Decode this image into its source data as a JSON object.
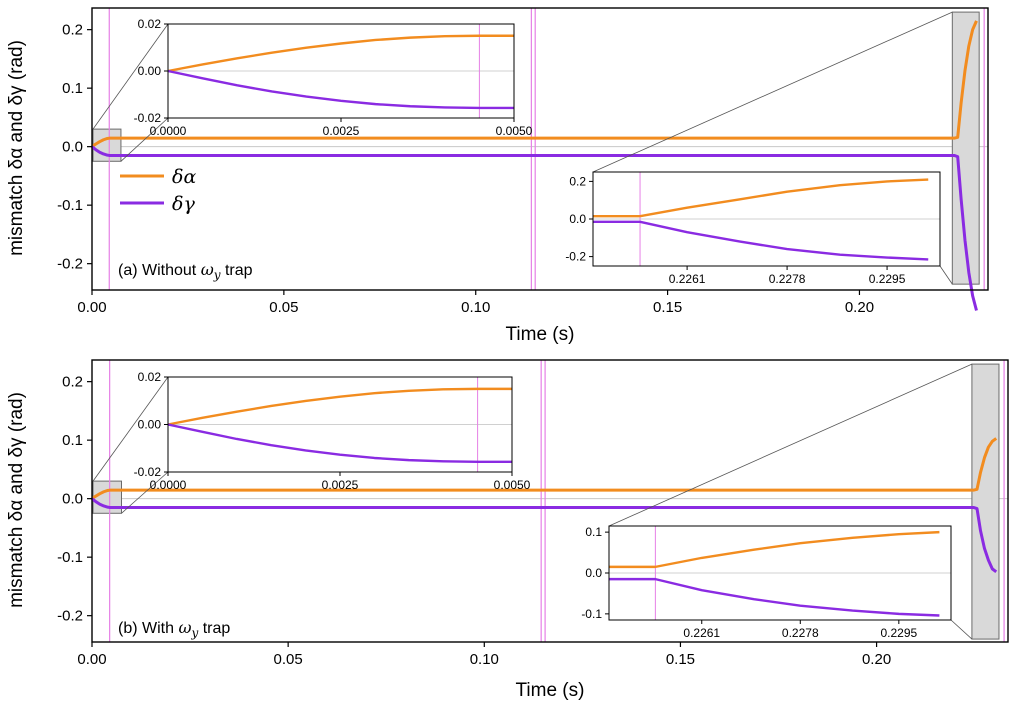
{
  "colors": {
    "alpha": "#F28C1F",
    "gamma": "#8A2BE2",
    "marker": "#E680E6",
    "zoom_fill": "#D9D9D9",
    "zoom_stroke": "#6B6B6B"
  },
  "chart_data": [
    {
      "type": "line",
      "id": "a",
      "title": "(a) Without ω_y trap",
      "label_prefix": "(a) Without ",
      "label_omega": "ω",
      "label_sub": "y",
      "label_suffix": " trap",
      "xlabel": "Time (s)",
      "ylabel": "mismatch δα and δγ (rad)",
      "xlim": [
        0,
        0.2335
      ],
      "ylim": [
        -0.245,
        0.237
      ],
      "xticks": [
        0.0,
        0.05,
        0.1,
        0.15,
        0.2
      ],
      "xtick_labels": [
        "0.00",
        "0.05",
        "0.10",
        "0.15",
        "0.20"
      ],
      "yticks": [
        -0.2,
        -0.1,
        0.0,
        0.1,
        0.2
      ],
      "ytick_labels": [
        "-0.2",
        "-0.1",
        "0.0",
        "0.1",
        "0.2"
      ],
      "legend": {
        "placement": "left-middle",
        "entries": [
          "δα",
          "δγ"
        ]
      },
      "marker_times": [
        0.0045,
        0.1145,
        0.1155,
        0.2325
      ],
      "series": [
        {
          "name": "δα",
          "x": [
            0,
            0.001,
            0.002,
            0.003,
            0.004,
            0.0045,
            0.005,
            0.006,
            0.1,
            0.2,
            0.2247,
            0.2256,
            0.2265,
            0.2275,
            0.2285,
            0.2295,
            0.2305
          ],
          "y": [
            0,
            0.0045,
            0.0085,
            0.0118,
            0.014,
            0.0145,
            0.0145,
            0.0145,
            0.0145,
            0.0145,
            0.0145,
            0.016,
            0.075,
            0.13,
            0.172,
            0.2,
            0.215
          ]
        },
        {
          "name": "δγ",
          "x": [
            0,
            0.001,
            0.002,
            0.003,
            0.004,
            0.0045,
            0.005,
            0.006,
            0.1,
            0.2,
            0.2247,
            0.2256,
            0.2265,
            0.2275,
            0.2285,
            0.2295,
            0.2305
          ],
          "y": [
            0,
            -0.0052,
            -0.0095,
            -0.0125,
            -0.0145,
            -0.015,
            -0.015,
            -0.015,
            -0.015,
            -0.015,
            -0.015,
            -0.017,
            -0.09,
            -0.16,
            -0.215,
            -0.255,
            -0.28
          ]
        }
      ],
      "inset_start": {
        "xlim": [
          0,
          0.005
        ],
        "ylim": [
          -0.02,
          0.02
        ],
        "xticks": [
          0,
          0.0025,
          0.005
        ],
        "xtick_labels": [
          "0.0000",
          "0.0025",
          "0.0050"
        ],
        "yticks": [
          -0.02,
          0.0,
          0.02
        ],
        "ytick_labels": [
          "-0.02",
          "0.00",
          "0.02"
        ],
        "zoom_region": {
          "x": [
            0,
            0.0065
          ],
          "y": [
            -0.025,
            0.03
          ]
        },
        "marker_time": 0.0045,
        "series": [
          {
            "name": "δα",
            "x": [
              0,
              0.0005,
              0.001,
              0.0015,
              0.002,
              0.0025,
              0.003,
              0.0035,
              0.004,
              0.0045,
              0.005
            ],
            "y": [
              0,
              0.0028,
              0.0054,
              0.0078,
              0.0099,
              0.0117,
              0.0132,
              0.0142,
              0.0148,
              0.015,
              0.015
            ]
          },
          {
            "name": "δγ",
            "x": [
              0,
              0.0005,
              0.001,
              0.0015,
              0.002,
              0.0025,
              0.003,
              0.0035,
              0.004,
              0.0045,
              0.005
            ],
            "y": [
              0,
              -0.0031,
              -0.0061,
              -0.0087,
              -0.0109,
              -0.0127,
              -0.0141,
              -0.015,
              -0.0155,
              -0.0157,
              -0.0157
            ]
          }
        ]
      },
      "inset_end": {
        "xlim": [
          0.2245,
          0.2304
        ],
        "ylim": [
          -0.25,
          0.25
        ],
        "xticks": [
          0.2261,
          0.2278,
          0.2295
        ],
        "xtick_labels": [
          "0.2261",
          "0.2278",
          "0.2295"
        ],
        "yticks": [
          -0.2,
          0.0,
          0.2
        ],
        "ytick_labels": [
          "-0.2",
          "0.0",
          "0.2"
        ],
        "zoom_region": {
          "x": [
            0.2242,
            0.2312
          ],
          "y": [
            -0.235,
            0.23
          ]
        },
        "marker_time": 0.2253,
        "series": [
          {
            "name": "δα",
            "x": [
              0.2245,
              0.2253,
              0.2261,
              0.227,
              0.2278,
              0.2287,
              0.2295,
              0.2302
            ],
            "y": [
              0.015,
              0.015,
              0.06,
              0.105,
              0.145,
              0.18,
              0.2,
              0.21
            ]
          },
          {
            "name": "δγ",
            "x": [
              0.2245,
              0.2253,
              0.2261,
              0.227,
              0.2278,
              0.2287,
              0.2295,
              0.2302
            ],
            "y": [
              -0.015,
              -0.015,
              -0.07,
              -0.12,
              -0.16,
              -0.19,
              -0.205,
              -0.215
            ]
          }
        ]
      }
    },
    {
      "type": "line",
      "id": "b",
      "title": "(b) With ω_y trap",
      "label_prefix": "(b) With ",
      "label_omega": "ω",
      "label_sub": "y",
      "label_suffix": " trap",
      "xlabel": "Time (s)",
      "ylabel": "mismatch δα and δγ (rad)",
      "xlim": [
        0,
        0.2335
      ],
      "ylim": [
        -0.245,
        0.237
      ],
      "xticks": [
        0.0,
        0.05,
        0.1,
        0.15,
        0.2
      ],
      "xtick_labels": [
        "0.00",
        "0.05",
        "0.10",
        "0.15",
        "0.20"
      ],
      "yticks": [
        -0.2,
        -0.1,
        0.0,
        0.1,
        0.2
      ],
      "ytick_labels": [
        "-0.2",
        "-0.1",
        "0.0",
        "0.1",
        "0.2"
      ],
      "marker_times": [
        0.0045,
        0.1145,
        0.1155,
        0.2325
      ],
      "series": [
        {
          "name": "δα",
          "x": [
            0,
            0.001,
            0.002,
            0.003,
            0.004,
            0.0045,
            0.005,
            0.006,
            0.1,
            0.2,
            0.2247,
            0.2256,
            0.2265,
            0.2275,
            0.2285,
            0.2295,
            0.2305
          ],
          "y": [
            0,
            0.0045,
            0.0085,
            0.0118,
            0.014,
            0.0145,
            0.0145,
            0.0145,
            0.0145,
            0.0145,
            0.0145,
            0.016,
            0.045,
            0.07,
            0.088,
            0.098,
            0.103
          ]
        },
        {
          "name": "δγ",
          "x": [
            0,
            0.001,
            0.002,
            0.003,
            0.004,
            0.0045,
            0.005,
            0.006,
            0.1,
            0.2,
            0.2247,
            0.2256,
            0.2265,
            0.2275,
            0.2285,
            0.2295,
            0.2305
          ],
          "y": [
            0,
            -0.0052,
            -0.0095,
            -0.0125,
            -0.0145,
            -0.015,
            -0.015,
            -0.015,
            -0.015,
            -0.015,
            -0.015,
            -0.017,
            -0.055,
            -0.085,
            -0.105,
            -0.12,
            -0.125
          ]
        }
      ],
      "inset_start": {
        "xlim": [
          0,
          0.005
        ],
        "ylim": [
          -0.02,
          0.02
        ],
        "xticks": [
          0,
          0.0025,
          0.005
        ],
        "xtick_labels": [
          "0.0000",
          "0.0025",
          "0.0050"
        ],
        "yticks": [
          -0.02,
          0.0,
          0.02
        ],
        "ytick_labels": [
          "-0.02",
          "0.00",
          "0.02"
        ],
        "zoom_region": {
          "x": [
            0,
            0.0065
          ],
          "y": [
            -0.025,
            0.03
          ]
        },
        "marker_time": 0.0045,
        "series": [
          {
            "name": "δα",
            "x": [
              0,
              0.0005,
              0.001,
              0.0015,
              0.002,
              0.0025,
              0.003,
              0.0035,
              0.004,
              0.0045,
              0.005
            ],
            "y": [
              0,
              0.0028,
              0.0054,
              0.0078,
              0.0099,
              0.0117,
              0.0132,
              0.0142,
              0.0148,
              0.015,
              0.015
            ]
          },
          {
            "name": "δγ",
            "x": [
              0,
              0.0005,
              0.001,
              0.0015,
              0.002,
              0.0025,
              0.003,
              0.0035,
              0.004,
              0.0045,
              0.005
            ],
            "y": [
              0,
              -0.0031,
              -0.0061,
              -0.0087,
              -0.0109,
              -0.0127,
              -0.0141,
              -0.015,
              -0.0155,
              -0.0157,
              -0.0157
            ]
          }
        ]
      },
      "inset_end": {
        "xlim": [
          0.2245,
          0.2304
        ],
        "ylim": [
          -0.115,
          0.115
        ],
        "xticks": [
          0.2261,
          0.2278,
          0.2295
        ],
        "xtick_labels": [
          "0.2261",
          "0.2278",
          "0.2295"
        ],
        "yticks": [
          -0.1,
          0.0,
          0.1
        ],
        "ytick_labels": [
          "-0.1",
          "0.0",
          "0.1"
        ],
        "zoom_region": {
          "x": [
            0.2243,
            0.2312
          ],
          "y": [
            -0.24,
            0.23
          ]
        },
        "marker_time": 0.2253,
        "series": [
          {
            "name": "δα",
            "x": [
              0.2245,
              0.2253,
              0.2261,
              0.227,
              0.2278,
              0.2287,
              0.2295,
              0.2302
            ],
            "y": [
              0.015,
              0.015,
              0.037,
              0.057,
              0.073,
              0.086,
              0.095,
              0.1
            ]
          },
          {
            "name": "δγ",
            "x": [
              0.2245,
              0.2253,
              0.2261,
              0.227,
              0.2278,
              0.2287,
              0.2295,
              0.2302
            ],
            "y": [
              -0.015,
              -0.015,
              -0.042,
              -0.064,
              -0.08,
              -0.092,
              -0.1,
              -0.104
            ]
          }
        ]
      }
    }
  ]
}
